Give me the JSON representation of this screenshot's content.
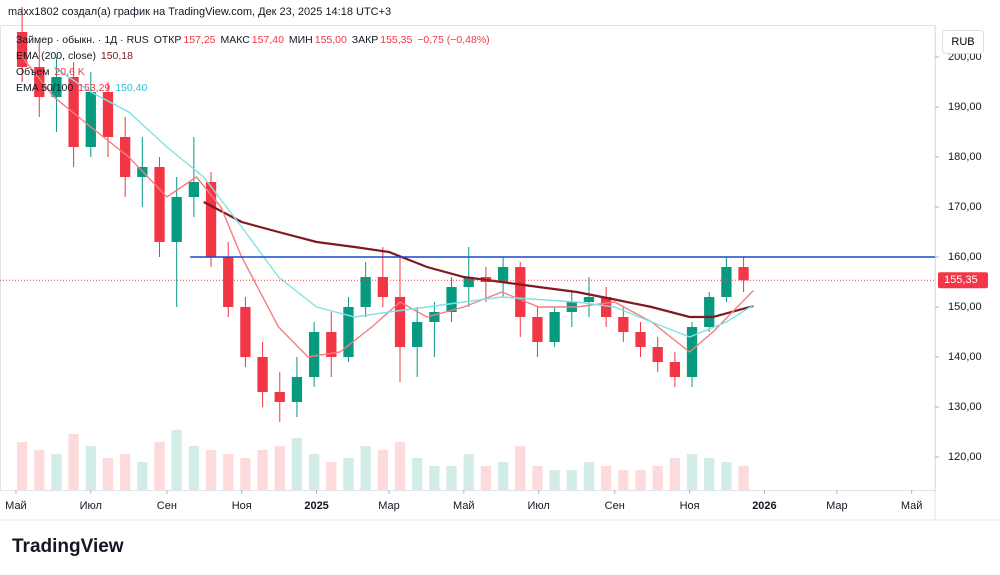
{
  "chart_data": {
    "type": "candlestick",
    "attribution": "maxx1802 создал(а) график на TradingView.com, Дек 23, 2025 14:18 UTC+3",
    "legend": {
      "symbol": "Займер · обыкн. · 1Д · RUS",
      "open_label": "ОТКР",
      "open_value": "157,25",
      "high_label": "МАКС",
      "high_value": "157,40",
      "low_label": "МИН",
      "low_value": "155,00",
      "close_label": "ЗАКР",
      "close_value": "155,35",
      "change": "−0,75 (−0,48%)",
      "ema200_label": "EMA (200, close)",
      "ema200_value": "150,18",
      "volume_label": "Объем",
      "volume_value": "20,6 K",
      "ema_label": "EMA 50/100",
      "ema50_value": "153,29",
      "ema100_value": "150,40"
    },
    "currency": "RUB",
    "logo": "TradingView",
    "up_color": "#089981",
    "down_color": "#f23645",
    "x": [
      "2024-05-06",
      "2024-05-20",
      "2024-06-03",
      "2024-06-17",
      "2024-07-01",
      "2024-07-15",
      "2024-07-29",
      "2024-08-12",
      "2024-08-26",
      "2024-09-09",
      "2024-09-23",
      "2024-10-07",
      "2024-10-21",
      "2024-11-04",
      "2024-11-18",
      "2024-12-02",
      "2024-12-16",
      "2024-12-30",
      "2025-01-13",
      "2025-01-27",
      "2025-02-10",
      "2025-02-24",
      "2025-03-10",
      "2025-03-24",
      "2025-04-07",
      "2025-04-21",
      "2025-05-05",
      "2025-05-19",
      "2025-06-02",
      "2025-06-16",
      "2025-06-30",
      "2025-07-14",
      "2025-07-28",
      "2025-08-11",
      "2025-08-25",
      "2025-09-08",
      "2025-09-22",
      "2025-10-06",
      "2025-10-20",
      "2025-11-03",
      "2025-11-17",
      "2025-12-01",
      "2025-12-15"
    ],
    "open": [
      205,
      198,
      192,
      196,
      182,
      193,
      184,
      176,
      178,
      163,
      172,
      175,
      160,
      150,
      140,
      133,
      131,
      136,
      145,
      140,
      150,
      156,
      152,
      142,
      147,
      149,
      154,
      156,
      155,
      158,
      148,
      143,
      149,
      151,
      152,
      148,
      145,
      142,
      139,
      136,
      146,
      152,
      158
    ],
    "high": [
      210,
      203,
      200,
      199,
      197,
      195,
      188,
      184,
      180,
      176,
      184,
      177,
      163,
      152,
      143,
      137,
      140,
      147,
      149,
      152,
      159,
      162,
      160,
      150,
      151,
      156,
      162,
      158,
      160,
      159,
      150,
      150,
      153,
      156,
      154,
      150,
      147,
      144,
      141,
      147,
      153,
      160,
      160
    ],
    "low": [
      195,
      188,
      185,
      178,
      180,
      180,
      172,
      170,
      160,
      150,
      168,
      158,
      148,
      138,
      130,
      127,
      128,
      134,
      136,
      139,
      148,
      150,
      135,
      136,
      140,
      147,
      150,
      151,
      152,
      144,
      140,
      142,
      146,
      148,
      146,
      143,
      140,
      137,
      134,
      134,
      145,
      151,
      153
    ],
    "close": [
      198,
      192,
      196,
      182,
      193,
      184,
      176,
      178,
      163,
      172,
      175,
      160,
      150,
      140,
      133,
      131,
      136,
      145,
      140,
      150,
      156,
      152,
      142,
      147,
      149,
      154,
      156,
      155,
      158,
      148,
      143,
      149,
      151,
      152,
      148,
      145,
      142,
      139,
      136,
      146,
      152,
      158,
      155.35
    ],
    "volume": [
      60,
      50,
      45,
      70,
      55,
      40,
      45,
      35,
      60,
      75,
      55,
      50,
      45,
      40,
      50,
      55,
      65,
      45,
      35,
      40,
      55,
      50,
      60,
      40,
      30,
      30,
      45,
      30,
      35,
      55,
      30,
      25,
      25,
      35,
      30,
      25,
      25,
      30,
      40,
      45,
      40,
      35,
      30
    ],
    "lines": [
      {
        "name": "EMA 200",
        "color": "#801922",
        "x": [
          "2024-10-01",
          "2024-11-01",
          "2024-12-01",
          "2025-01-01",
          "2025-02-01",
          "2025-03-01",
          "2025-04-01",
          "2025-05-01",
          "2025-06-01",
          "2025-07-01",
          "2025-08-01",
          "2025-09-01",
          "2025-10-01",
          "2025-11-01",
          "2025-11-20",
          "2025-12-23"
        ],
        "values": [
          171,
          167,
          165,
          163,
          162,
          161,
          158,
          156,
          155,
          154,
          153,
          151.5,
          150,
          148,
          148,
          150.2
        ]
      },
      {
        "name": "EMA 50",
        "color": "#f77c80",
        "x": [
          "2024-05-06",
          "2024-06-01",
          "2024-07-01",
          "2024-08-01",
          "2024-09-01",
          "2024-09-25",
          "2024-10-15",
          "2024-11-01",
          "2024-12-01",
          "2024-12-25",
          "2025-01-20",
          "2025-02-15",
          "2025-03-10",
          "2025-04-01",
          "2025-05-01",
          "2025-06-01",
          "2025-07-01",
          "2025-08-01",
          "2025-09-01",
          "2025-10-01",
          "2025-11-01",
          "2025-11-20",
          "2025-12-23"
        ],
        "values": [
          200,
          192,
          186,
          180,
          172,
          176,
          170,
          160,
          146,
          140,
          141,
          146,
          151,
          148,
          150,
          153,
          150,
          150,
          151,
          147,
          141,
          145,
          153.3
        ]
      },
      {
        "name": "EMA 100",
        "color": "#7fe3e3",
        "x": [
          "2024-06-01",
          "2024-07-01",
          "2024-08-01",
          "2024-09-01",
          "2024-10-01",
          "2024-11-01",
          "2024-12-01",
          "2025-01-01",
          "2025-02-01",
          "2025-03-01",
          "2025-04-01",
          "2025-05-01",
          "2025-06-01",
          "2025-07-01",
          "2025-08-01",
          "2025-09-01",
          "2025-10-01",
          "2025-11-01",
          "2025-12-01",
          "2025-12-23"
        ],
        "values": [
          198,
          193,
          189,
          182,
          176,
          166,
          156,
          150,
          148,
          149,
          150,
          151,
          152,
          151.5,
          151,
          150,
          147,
          144,
          147,
          150.4
        ]
      }
    ],
    "hline": {
      "value": 160,
      "x_start": "2024-09-20",
      "color": "#1848cc"
    },
    "last_price": 155.35,
    "xlim": [
      "2024-04-18",
      "2026-05-20"
    ],
    "xticks": [
      {
        "value": "2024-05-01",
        "label": "Май"
      },
      {
        "value": "2024-07-01",
        "label": "Июл"
      },
      {
        "value": "2024-09-01",
        "label": "Сен"
      },
      {
        "value": "2024-11-01",
        "label": "Ноя"
      },
      {
        "value": "2025-01-01",
        "label": "2025"
      },
      {
        "value": "2025-03-01",
        "label": "Мар"
      },
      {
        "value": "2025-05-01",
        "label": "Май"
      },
      {
        "value": "2025-07-01",
        "label": "Июл"
      },
      {
        "value": "2025-09-01",
        "label": "Сен"
      },
      {
        "value": "2025-11-01",
        "label": "Ноя"
      },
      {
        "value": "2026-01-01",
        "label": "2026"
      },
      {
        "value": "2026-03-01",
        "label": "Мар"
      },
      {
        "value": "2026-05-01",
        "label": "Май"
      }
    ],
    "ylim": [
      113.4,
      206.4
    ],
    "yticks": [
      {
        "value": 120,
        "label": "120,00"
      },
      {
        "value": 130,
        "label": "130,00"
      },
      {
        "value": 140,
        "label": "140,00"
      },
      {
        "value": 150,
        "label": "150,00"
      },
      {
        "value": 160,
        "label": "160,00"
      },
      {
        "value": 170,
        "label": "170,00"
      },
      {
        "value": 180,
        "label": "180,00"
      },
      {
        "value": 190,
        "label": "190,00"
      },
      {
        "value": 200,
        "label": "200,00"
      }
    ]
  }
}
